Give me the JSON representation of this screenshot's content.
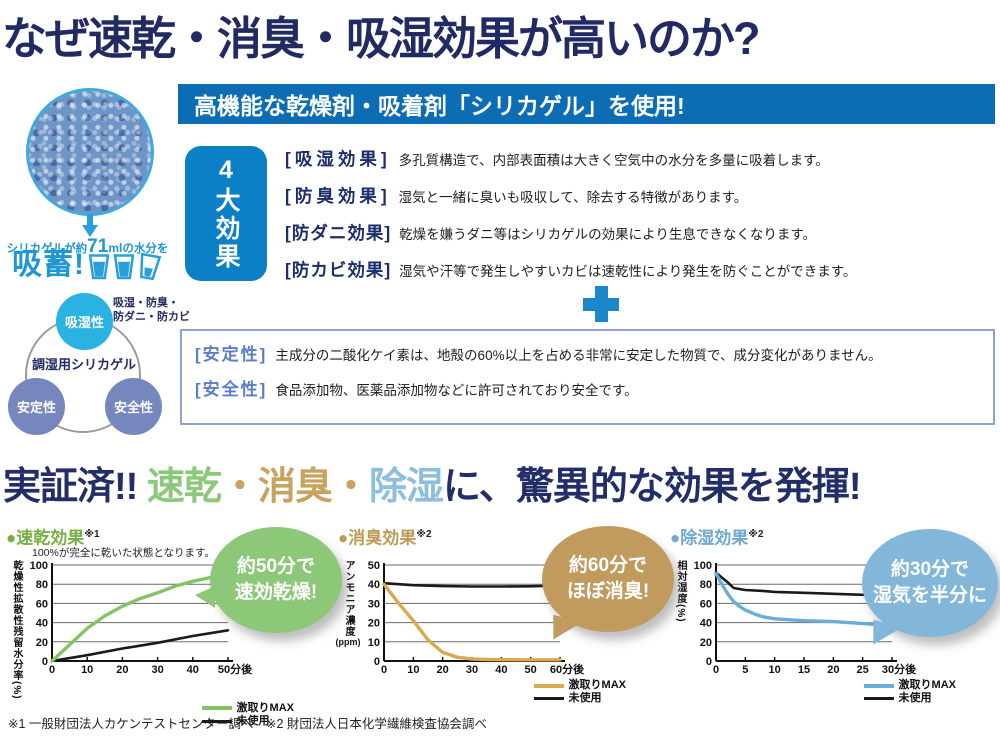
{
  "page": {
    "title": "なぜ速乾・消臭・吸湿効果が高いのか?"
  },
  "section1": {
    "banner": "高機能な乾燥剤・吸着剤「シリカゲル」を使用!",
    "silica": {
      "caption_prefix": "シリカゲルが約",
      "caption_value": "71",
      "caption_unit": "ml",
      "caption_suffix": "の水分を",
      "absorb_label": "吸蓄!",
      "cups": [
        "full",
        "full",
        "half"
      ]
    },
    "badge": "4大効果",
    "effects": [
      {
        "label": "[吸湿効果]",
        "desc": "多孔質構造で、内部表面積は大きく空気中の水分を多量に吸着します。"
      },
      {
        "label": "[防臭効果]",
        "desc": "湿気と一緒に臭いも吸収して、除去する特徴があります。"
      },
      {
        "label": "[防ダニ効果]",
        "desc": "乾燥を嫌うダニ等はシリカゲルの効果により生息できなくなります。"
      },
      {
        "label": "[防カビ効果]",
        "desc": "湿気や汗等で発生しやすいカビは速乾性により発生を防ぐことができます。"
      }
    ],
    "stability": [
      {
        "label": "[安定性]",
        "desc": "主成分の二酸化ケイ素は、地殻の60%以上を占める非常に安定した物質で、成分変化がありません。"
      },
      {
        "label": "[安全性]",
        "desc": "食品添加物、医薬品添加物などに許可されており安全です。"
      }
    ],
    "venn": {
      "center": "調湿用シリカゲル",
      "top": {
        "label": "吸湿性",
        "color": "#29b2e2"
      },
      "left": {
        "label": "安定性",
        "color": "#7587bd"
      },
      "right": {
        "label": "安全性",
        "color": "#7587bd"
      },
      "note_lines": [
        "吸湿・防臭・",
        "防ダニ・防カビ"
      ]
    }
  },
  "section2": {
    "title_segments": [
      {
        "text": "実証済!! ",
        "color": "#232d67"
      },
      {
        "text": "速乾",
        "color": "#8cc87a"
      },
      {
        "text": "・",
        "color": "#c8a25f"
      },
      {
        "text": "消臭",
        "color": "#c8a25f"
      },
      {
        "text": "・",
        "color": "#c8a25f"
      },
      {
        "text": "除湿",
        "color": "#8cbede"
      },
      {
        "text": "に、驚異的な効果を発揮!",
        "color": "#232d67"
      }
    ],
    "charts": [
      {
        "title": "●速乾効果",
        "ref": "※1",
        "color": "#76b043",
        "note": "100%が完全に乾いた状態となります。",
        "bubble": {
          "lines": [
            "約50分で",
            "速効乾燥!"
          ],
          "color": "#8cc878"
        }
      },
      {
        "title": "●消臭効果",
        "ref": "※2",
        "color": "#bb9c55",
        "note": "",
        "bubble": {
          "lines": [
            "約60分で",
            "ほぼ消臭!"
          ],
          "color": "#c19a5e"
        }
      },
      {
        "title": "●除湿効果",
        "ref": "※2",
        "color": "#6fa9cf",
        "note": "",
        "bubble": {
          "lines": [
            "約30分で",
            "湿気を半分に"
          ],
          "color": "#83b7d9"
        }
      }
    ],
    "footnote": "※1 一般財団法人カケンテストセンター調べ　※2 財団法人日本化学繊維検査協会調べ"
  },
  "chart_data": [
    {
      "type": "line",
      "title": "速乾効果",
      "ylabel": "乾燥性拡散性残留水分率(%)",
      "yunit": "",
      "xunit": "分後",
      "yticks": [
        0,
        20,
        40,
        60,
        80,
        100
      ],
      "xticks": [
        0,
        10,
        20,
        30,
        40,
        50
      ],
      "series": [
        {
          "name": "激取りMAX",
          "color": "#82c464",
          "points": [
            [
              0,
              0
            ],
            [
              5,
              17
            ],
            [
              10,
              34
            ],
            [
              15,
              47
            ],
            [
              20,
              57
            ],
            [
              25,
              65
            ],
            [
              30,
              71
            ],
            [
              35,
              78
            ],
            [
              40,
              83
            ],
            [
              45,
              87
            ],
            [
              50,
              90
            ]
          ]
        },
        {
          "name": "未使用",
          "color": "#1a1a1a",
          "points": [
            [
              0,
              0
            ],
            [
              10,
              6
            ],
            [
              20,
              13
            ],
            [
              30,
              19
            ],
            [
              40,
              26
            ],
            [
              50,
              32
            ]
          ]
        }
      ]
    },
    {
      "type": "line",
      "title": "消臭効果",
      "ylabel": "アンモニア濃度",
      "yunit": "(ppm)",
      "xunit": "分後",
      "yticks": [
        0,
        10,
        20,
        30,
        40,
        50
      ],
      "xticks": [
        0,
        10,
        20,
        30,
        40,
        50,
        60
      ],
      "series": [
        {
          "name": "激取りMAX",
          "color": "#d8a94e",
          "points": [
            [
              0,
              40
            ],
            [
              5,
              30
            ],
            [
              10,
              21
            ],
            [
              15,
              11
            ],
            [
              20,
              4.5
            ],
            [
              25,
              2
            ],
            [
              30,
              1
            ],
            [
              35,
              0.8
            ],
            [
              40,
              0.7
            ],
            [
              50,
              0.6
            ],
            [
              60,
              0.6
            ]
          ]
        },
        {
          "name": "未使用",
          "color": "#1a1a1a",
          "points": [
            [
              0,
              40.5
            ],
            [
              10,
              39.5
            ],
            [
              20,
              39
            ],
            [
              30,
              38.8
            ],
            [
              40,
              38.8
            ],
            [
              50,
              38.9
            ],
            [
              60,
              39.3
            ]
          ]
        }
      ]
    },
    {
      "type": "line",
      "title": "除湿効果",
      "ylabel": "相対湿度(%)",
      "yunit": "",
      "xunit": "分後",
      "yticks": [
        0,
        20,
        40,
        60,
        80,
        100
      ],
      "xticks": [
        0,
        5,
        10,
        15,
        20,
        25,
        30
      ],
      "series": [
        {
          "name": "激取りMAX",
          "color": "#68aed6",
          "points": [
            [
              0,
              91
            ],
            [
              1,
              80
            ],
            [
              2,
              70
            ],
            [
              3,
              62
            ],
            [
              4,
              57
            ],
            [
              5,
              53
            ],
            [
              7,
              48
            ],
            [
              8,
              46
            ],
            [
              10,
              44
            ],
            [
              15,
              42
            ],
            [
              20,
              41
            ],
            [
              25,
              39
            ],
            [
              30,
              37
            ]
          ]
        },
        {
          "name": "未使用",
          "color": "#1a1a1a",
          "points": [
            [
              0,
              92
            ],
            [
              2,
              82
            ],
            [
              3,
              76
            ],
            [
              5,
              74
            ],
            [
              8,
              73
            ],
            [
              10,
              72
            ],
            [
              15,
              71
            ],
            [
              20,
              70
            ],
            [
              25,
              69
            ],
            [
              30,
              68
            ]
          ]
        }
      ]
    }
  ]
}
